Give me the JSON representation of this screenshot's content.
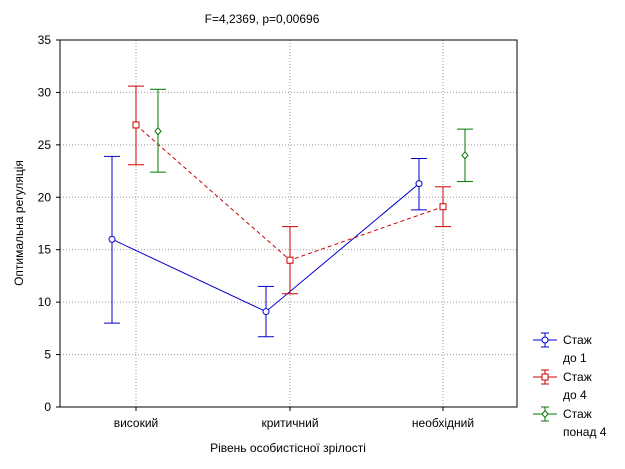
{
  "chart_data": {
    "type": "line",
    "title": "F=4,2369, p=0,00696",
    "xlabel": "Рівень особистісної зрілості",
    "ylabel": "Оптимальна регуляція",
    "categories": [
      "високий",
      "критичний",
      "необхідний"
    ],
    "ylim": [
      0,
      35
    ],
    "yticks": [
      0,
      5,
      10,
      15,
      20,
      25,
      30,
      35
    ],
    "grid": true,
    "legend_position": "bottom-right",
    "series": [
      {
        "name_lines": [
          "Стаж",
          "до 1"
        ],
        "color": "#0000cc",
        "dash": "solid",
        "marker": "circle",
        "values": [
          16,
          9.1,
          21.3
        ],
        "lower": [
          8,
          6.7,
          18.8
        ],
        "upper": [
          23.9,
          11.5,
          23.7
        ]
      },
      {
        "name_lines": [
          "Стаж",
          "до 4"
        ],
        "color": "#cc0000",
        "dash": "dashed",
        "marker": "square",
        "values": [
          26.9,
          14,
          19.1
        ],
        "lower": [
          23.1,
          10.8,
          17.2
        ],
        "upper": [
          30.6,
          17.2,
          21
        ]
      },
      {
        "name_lines": [
          "Стаж",
          "понад 4"
        ],
        "color": "#007700",
        "dash": "none",
        "marker": "diamond",
        "values": [
          26.3,
          null,
          24
        ],
        "lower": [
          22.4,
          null,
          21.5
        ],
        "upper": [
          30.3,
          null,
          26.5
        ]
      }
    ]
  }
}
